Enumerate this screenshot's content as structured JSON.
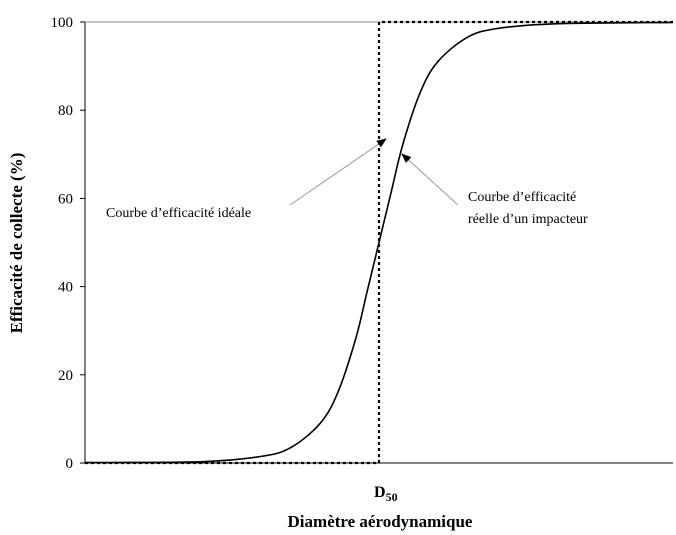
{
  "chart_data": {
    "type": "line",
    "title": "",
    "xlabel": "Diamètre aérodynamique",
    "ylabel": "Efficacité de collecte (%)",
    "ylim": [
      0,
      100
    ],
    "yticks": [
      0,
      20,
      40,
      60,
      80,
      100
    ],
    "x_marker": {
      "base": "D",
      "subscript": "50"
    },
    "grid": false,
    "legend": "none",
    "series": [
      {
        "style": "dotted",
        "color": "#000000",
        "x": [
          0.0,
          0.5,
          0.5,
          1.0
        ],
        "y": [
          0,
          0,
          100,
          100
        ]
      },
      {
        "style": "solid",
        "color": "#000000",
        "x": [
          0.0,
          0.2,
          0.3,
          0.35,
          0.4,
          0.43,
          0.46,
          0.48,
          0.5,
          0.52,
          0.54,
          0.57,
          0.6,
          0.65,
          0.7,
          0.8,
          1.0
        ],
        "y": [
          0.1,
          0.3,
          1.5,
          3.5,
          9,
          16,
          28,
          39,
          50,
          61,
          72,
          84,
          91,
          96.5,
          98.5,
          99.6,
          99.9
        ]
      }
    ],
    "annotations": [
      {
        "text": "Courbe d’efficacité idéale"
      },
      {
        "line1": "Courbe d’efficacité",
        "line2": "réelle d’un impacteur"
      }
    ]
  }
}
